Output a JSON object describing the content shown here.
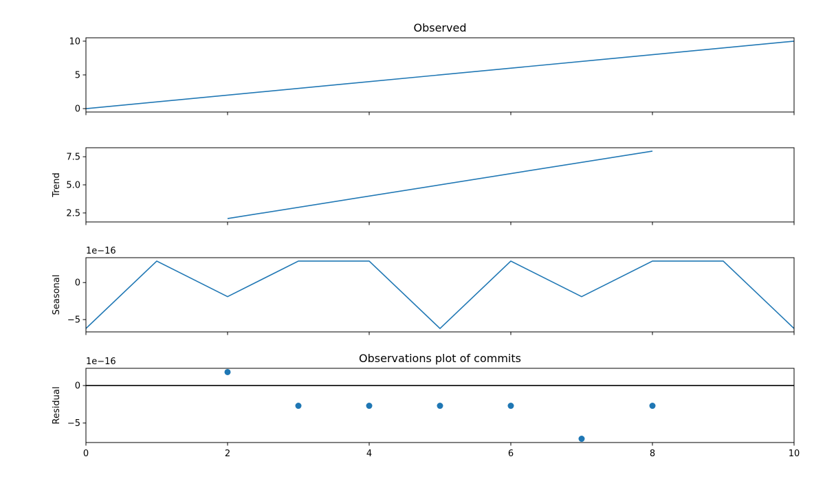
{
  "chart_data": [
    {
      "type": "line",
      "title": "Observed",
      "ylabel": "",
      "x": [
        0,
        10
      ],
      "series": [
        {
          "values": [
            0,
            10
          ]
        }
      ],
      "xlim": [
        0,
        10
      ],
      "ylim": [
        -0.5,
        10.5
      ],
      "xticks": [
        0,
        2,
        4,
        6,
        8,
        10
      ],
      "show_xtick_labels": false,
      "yticks": [
        0,
        5,
        10
      ],
      "ytick_labels": [
        "0",
        "5",
        "10"
      ],
      "offset_text": "",
      "color": "#1f77b4"
    },
    {
      "type": "line",
      "title": "",
      "ylabel": "Trend",
      "x": [
        2,
        8
      ],
      "series": [
        {
          "values": [
            2,
            8
          ]
        }
      ],
      "xlim": [
        0,
        10
      ],
      "ylim": [
        1.7,
        8.3
      ],
      "xticks": [
        0,
        2,
        4,
        6,
        8,
        10
      ],
      "show_xtick_labels": false,
      "yticks": [
        2.5,
        5.0,
        7.5
      ],
      "ytick_labels": [
        "2.5",
        "5.0",
        "7.5"
      ],
      "offset_text": "",
      "color": "#1f77b4"
    },
    {
      "type": "line",
      "title": "",
      "ylabel": "Seasonal",
      "x": [
        0,
        1,
        2,
        3,
        4,
        5,
        6,
        7,
        8,
        9,
        10
      ],
      "series": [
        {
          "values": [
            -6.2,
            2.9,
            -1.9,
            2.9,
            2.9,
            -6.2,
            2.9,
            -1.9,
            2.9,
            2.9,
            -6.2
          ]
        }
      ],
      "xlim": [
        0,
        10
      ],
      "ylim": [
        -6.66,
        3.36
      ],
      "xticks": [
        0,
        2,
        4,
        6,
        8,
        10
      ],
      "show_xtick_labels": false,
      "yticks": [
        -5,
        0
      ],
      "ytick_labels": [
        "−5",
        "0"
      ],
      "offset_text": "1e−16",
      "color": "#1f77b4"
    },
    {
      "type": "scatter",
      "title": "Observations plot of commits",
      "ylabel": "Residual",
      "x": [
        2,
        3,
        4,
        5,
        6,
        7,
        8
      ],
      "series": [
        {
          "values": [
            1.8,
            -2.7,
            -2.7,
            -2.7,
            -2.7,
            -7.1,
            -2.7
          ]
        }
      ],
      "xlim": [
        0,
        10
      ],
      "ylim": [
        -7.6,
        2.3
      ],
      "xticks": [
        0,
        2,
        4,
        6,
        8,
        10
      ],
      "show_xtick_labels": true,
      "xtick_labels": [
        "0",
        "2",
        "4",
        "6",
        "8",
        "10"
      ],
      "yticks": [
        -5,
        0
      ],
      "ytick_labels": [
        "−5",
        "0"
      ],
      "offset_text": "1e−16",
      "baseline": 0,
      "color": "#1f77b4"
    }
  ]
}
